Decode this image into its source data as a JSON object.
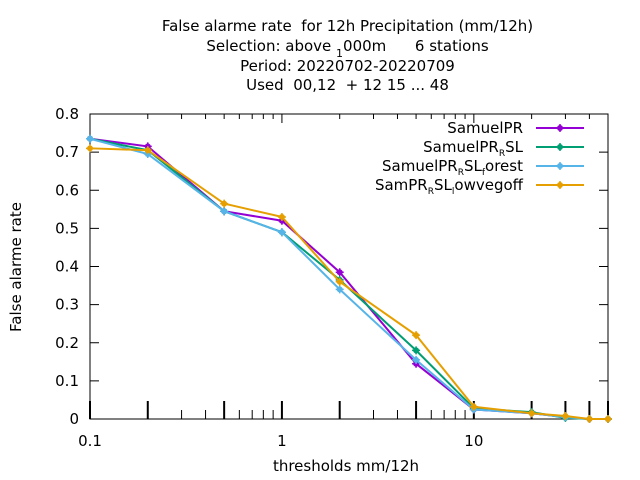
{
  "chart_data": {
    "type": "line",
    "title": "False alarme rate  for 12h Precipitation (mm/12h)",
    "subtitle": [
      "Selection: above 1000m      6 stations",
      "Period: 20220702-20220709",
      "Used  00,12  + 12 15 ... 48"
    ],
    "xlabel": "thresholds mm/12h",
    "ylabel": "False alarme rate",
    "x_scale": "log",
    "xlim": [
      0.1,
      50
    ],
    "ylim": [
      0,
      0.8
    ],
    "x_ticks": [
      "0.1",
      "1",
      "10"
    ],
    "y_ticks": [
      "0",
      "0.1",
      "0.2",
      "0.3",
      "0.4",
      "0.5",
      "0.6",
      "0.7",
      "0.8"
    ],
    "x": [
      0.1,
      0.2,
      0.5,
      1,
      2,
      5,
      10,
      20,
      30,
      40,
      50
    ],
    "legend_position": "top-right",
    "grid": false,
    "series": [
      {
        "name": "SamuelPR",
        "color": "#9400d3",
        "values": [
          0.735,
          0.715,
          0.545,
          0.52,
          0.385,
          0.145,
          0.025,
          0.015,
          0.005,
          0.0,
          0.0
        ]
      },
      {
        "name": "SamuelPR_RSL",
        "color": "#009e73",
        "values": [
          0.735,
          0.705,
          0.545,
          0.49,
          0.365,
          0.18,
          0.028,
          0.018,
          0.003,
          0.0,
          0.0
        ]
      },
      {
        "name": "SamuelPR_RSL_forest",
        "color": "#56b4e9",
        "values": [
          0.735,
          0.695,
          0.545,
          0.49,
          0.34,
          0.155,
          0.025,
          0.015,
          0.005,
          0.0,
          0.0
        ]
      },
      {
        "name": "SamPR_RSL_lowvegoff",
        "color": "#e69f00",
        "values": [
          0.71,
          0.705,
          0.565,
          0.53,
          0.36,
          0.22,
          0.032,
          0.015,
          0.008,
          0.0,
          0.0
        ]
      }
    ]
  }
}
